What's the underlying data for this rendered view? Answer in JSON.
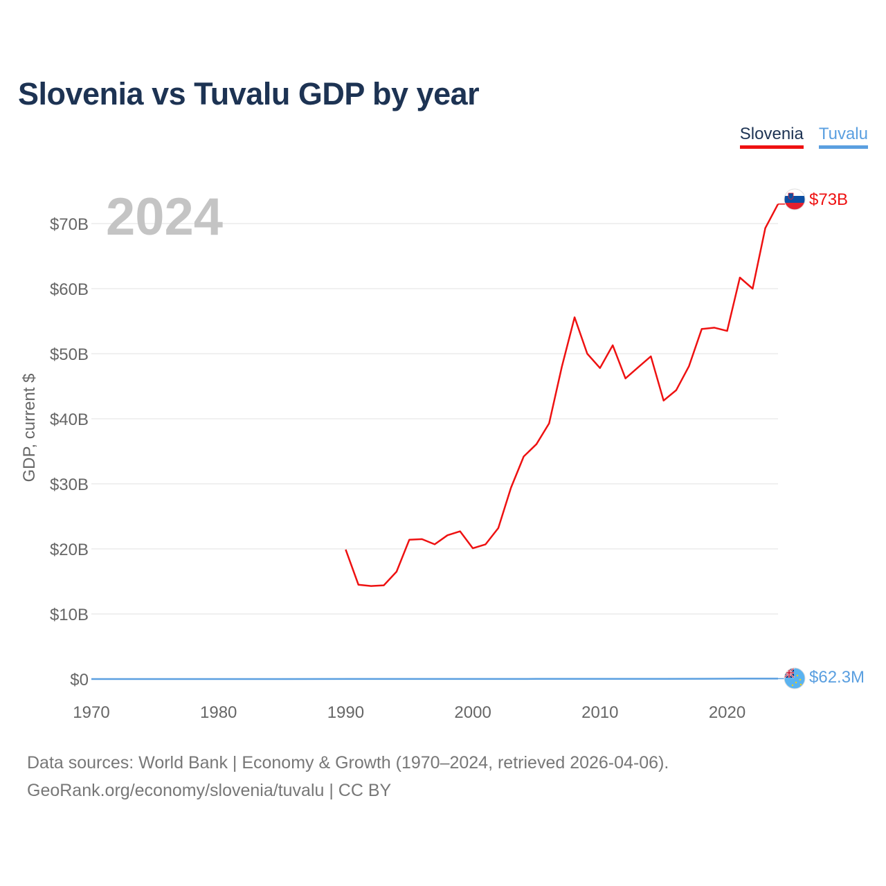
{
  "chart_data": {
    "type": "line",
    "title": "Slovenia vs Tuvalu GDP by year",
    "ylabel": "GDP, current $",
    "xlabel": "",
    "year_label": "2024",
    "xlim": [
      1970,
      2025
    ],
    "ylim": [
      0,
      75000000000
    ],
    "x_ticks": [
      1970,
      1980,
      1990,
      2000,
      2010,
      2020
    ],
    "x_tick_labels": [
      "1970",
      "1980",
      "1990",
      "2000",
      "2010",
      "2020"
    ],
    "y_ticks": [
      0,
      10000000000,
      20000000000,
      30000000000,
      40000000000,
      50000000000,
      60000000000,
      70000000000
    ],
    "y_tick_labels": [
      "$0",
      "$10B",
      "$20B",
      "$30B",
      "$40B",
      "$50B",
      "$60B",
      "$70B"
    ],
    "grid": true,
    "legend_position": "top-right",
    "series": [
      {
        "name": "Slovenia",
        "color": "#ee1111",
        "end_label": "$73B",
        "flag_icon": "slovenia-flag-icon",
        "x": [
          1990,
          1991,
          1992,
          1993,
          1994,
          1995,
          1996,
          1997,
          1998,
          1999,
          2000,
          2001,
          2002,
          2003,
          2004,
          2005,
          2006,
          2007,
          2008,
          2009,
          2010,
          2011,
          2012,
          2013,
          2014,
          2015,
          2016,
          2017,
          2018,
          2019,
          2020,
          2021,
          2022,
          2023,
          2024
        ],
        "values": [
          19900000000,
          14500000000,
          14300000000,
          14400000000,
          16500000000,
          21400000000,
          21500000000,
          20700000000,
          22100000000,
          22700000000,
          20100000000,
          20700000000,
          23200000000,
          29400000000,
          34200000000,
          36100000000,
          39300000000,
          48000000000,
          55600000000,
          50000000000,
          47800000000,
          51300000000,
          46200000000,
          47900000000,
          49600000000,
          42800000000,
          44400000000,
          48100000000,
          53800000000,
          54000000000,
          53500000000,
          61700000000,
          60000000000,
          69300000000,
          73000000000
        ]
      },
      {
        "name": "Tuvalu",
        "color": "#5a9fe0",
        "end_label": "$62.3M",
        "flag_icon": "tuvalu-flag-icon",
        "x": [
          1970,
          1975,
          1980,
          1985,
          1990,
          1995,
          2000,
          2005,
          2010,
          2015,
          2020,
          2021,
          2022,
          2023,
          2024
        ],
        "values": [
          0,
          0,
          0,
          0,
          9000000,
          12000000,
          15000000,
          23000000,
          31000000,
          34000000,
          55000000,
          60000000,
          59000000,
          62000000,
          62300000
        ]
      }
    ]
  },
  "footer": {
    "line1": "Data sources: World Bank | Economy & Growth (1970–2024, retrieved 2026-04-06).",
    "line2": "GeoRank.org/economy/slovenia/tuvalu | CC BY"
  }
}
